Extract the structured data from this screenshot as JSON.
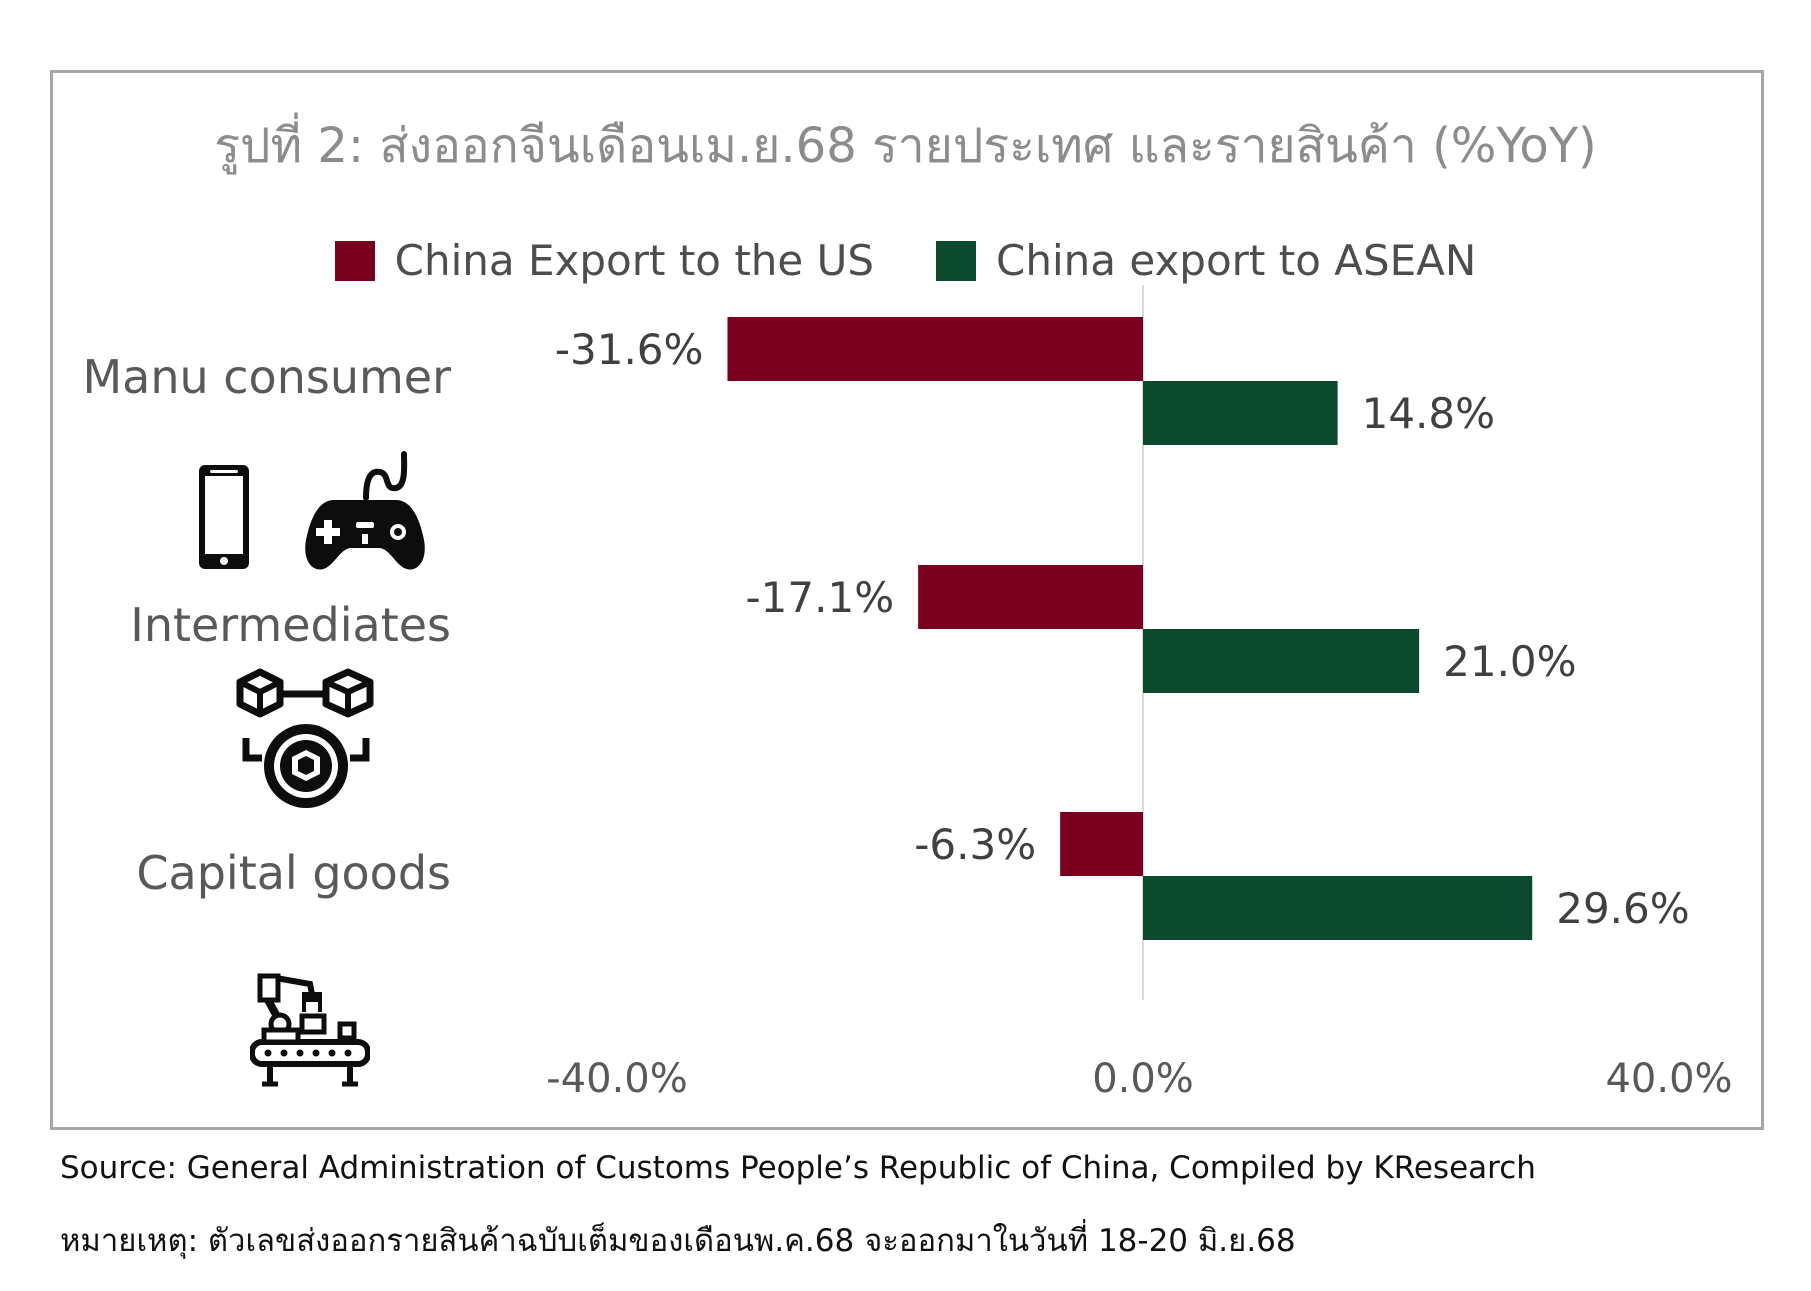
{
  "title": "รูปที่ 2: ส่งออกจีนเดือนเม.ย.68 รายประเทศ และรายสินค้า (%YoY)",
  "source": "Source: General Administration of Customs People’s Republic of China, Compiled by KResearch",
  "note": "หมายเหตุ: ตัวเลขส่งออกรายสินค้าฉบับเต็มของเดือนพ.ค.68 จะออกมาในวันที่ 18-20 มิ.ย.68",
  "icons": [
    "smartphone-icon",
    "gamepad-icon",
    "intermediate-goods-icon",
    "robot-arm-conveyor-icon"
  ],
  "chart_data": {
    "type": "bar",
    "orientation": "horizontal",
    "categories": [
      "Manu consumer",
      "Intermediates",
      "Capital goods"
    ],
    "series": [
      {
        "name": "China Export to the US",
        "color": "#7a0020",
        "values": [
          -31.6,
          -17.1,
          -6.3
        ],
        "labels": [
          "-31.6%",
          "-17.1%",
          "-6.3%"
        ]
      },
      {
        "name": "China export to ASEAN",
        "color": "#0b4a2e",
        "values": [
          14.8,
          21.0,
          29.6
        ],
        "labels": [
          "14.8%",
          "21.0%",
          "29.6%"
        ]
      }
    ],
    "xlim": [
      -40,
      40
    ],
    "xticks": [
      -40,
      0,
      40
    ],
    "xtick_labels": [
      "-40.0%",
      "0.0%",
      "40.0%"
    ],
    "legend": "top",
    "grid": false
  }
}
